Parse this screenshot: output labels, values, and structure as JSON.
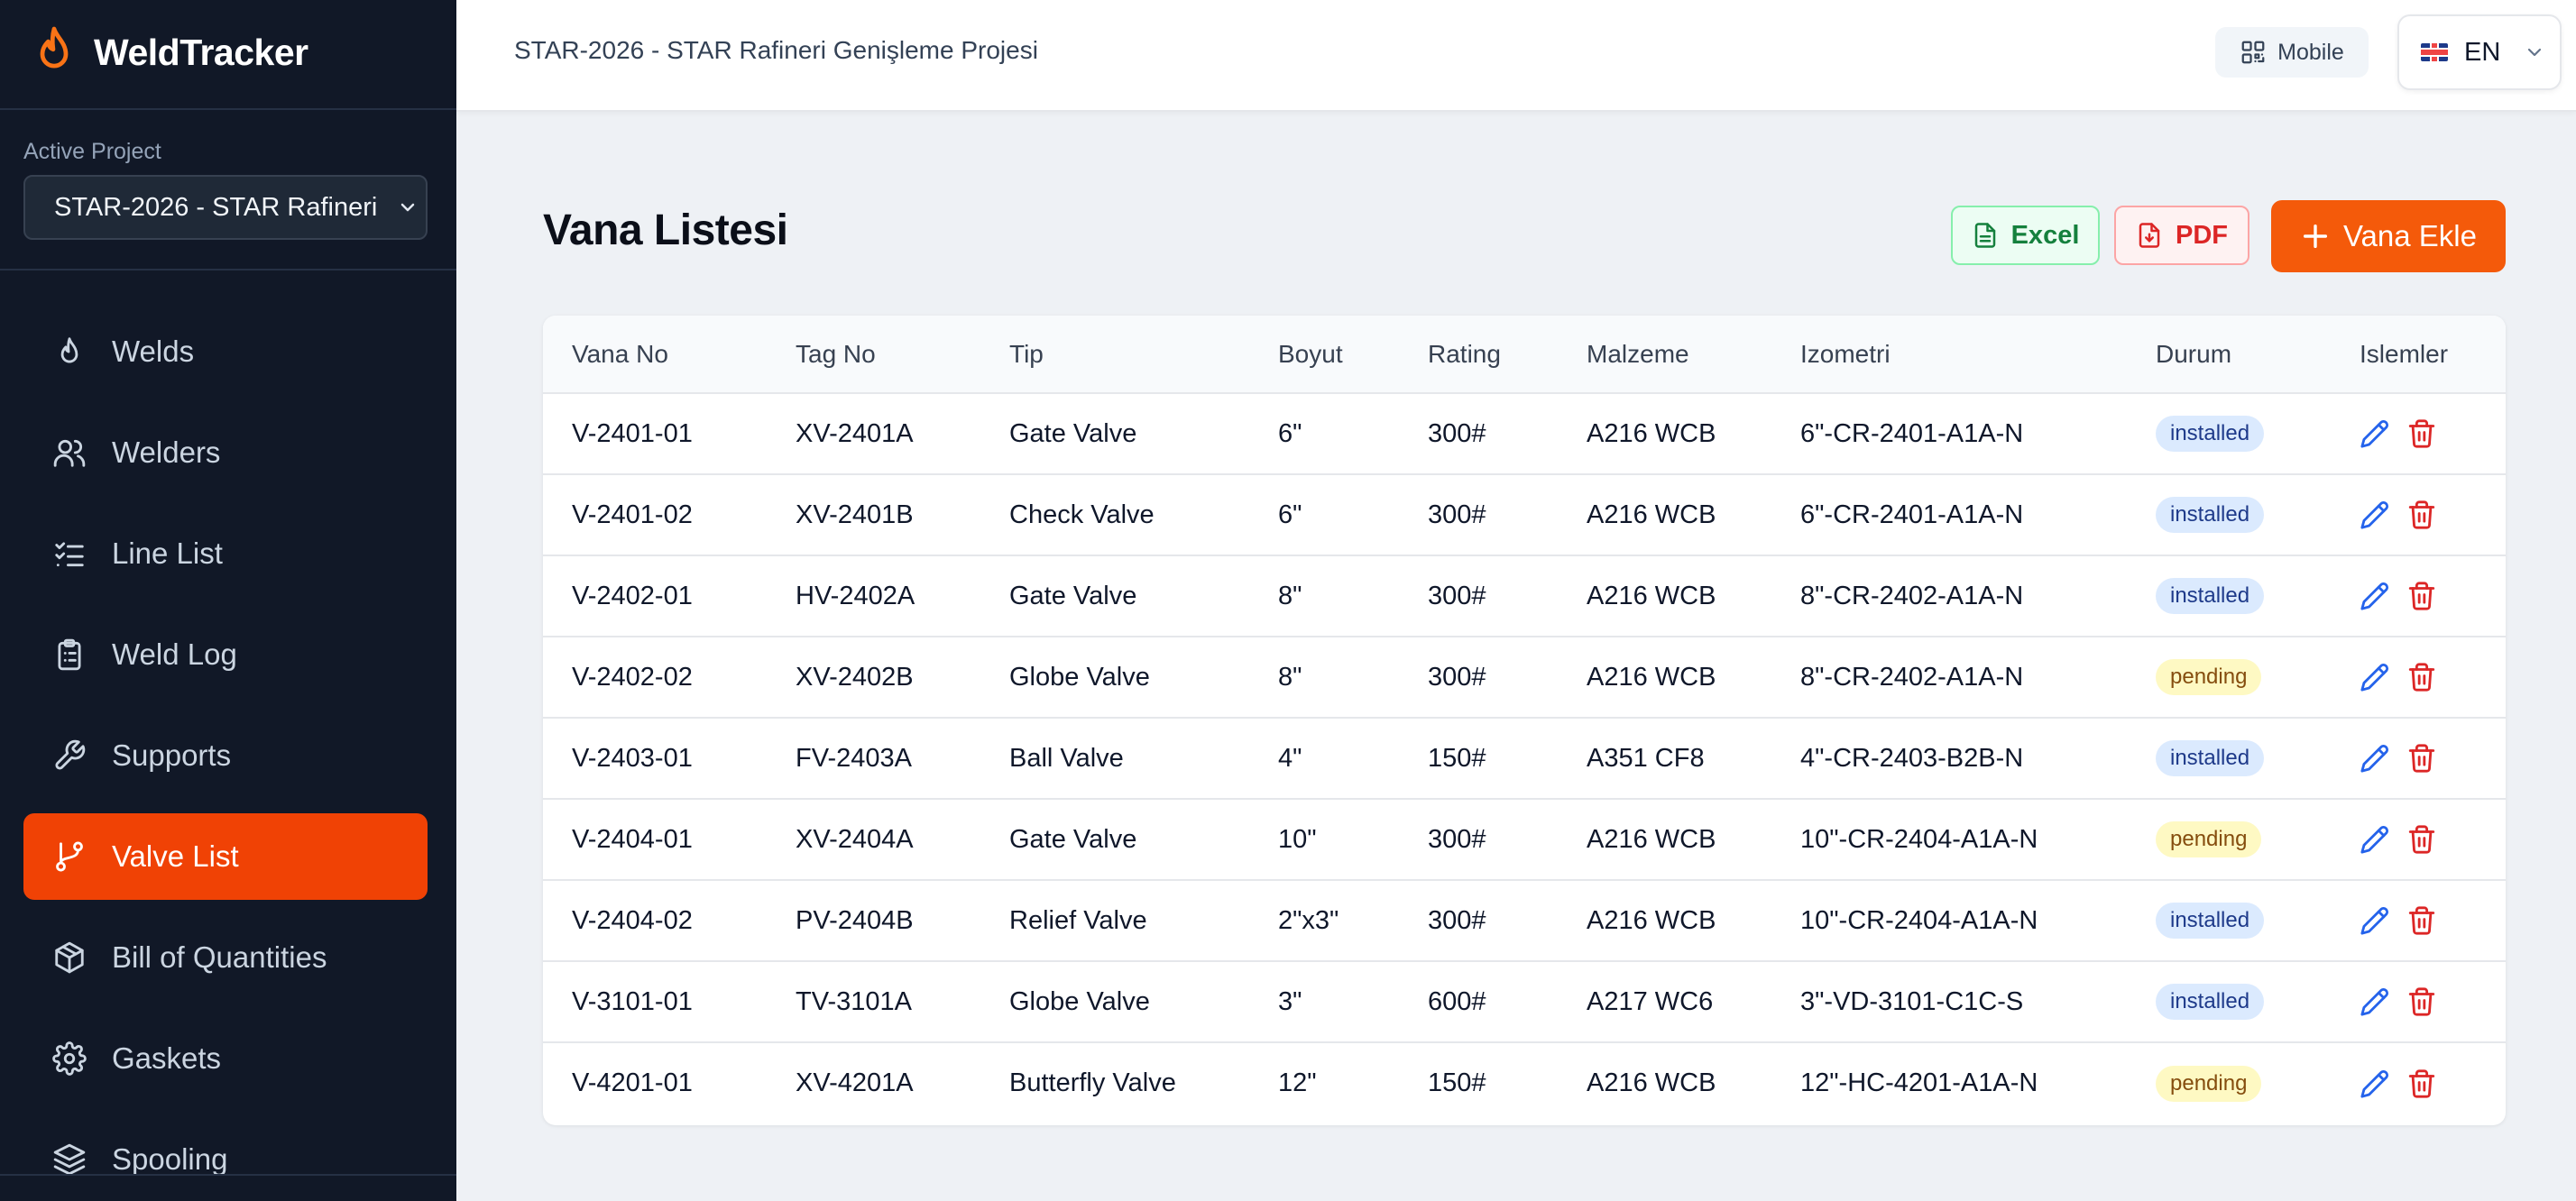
{
  "app": {
    "name": "WeldTracker"
  },
  "sidebar": {
    "project_label": "Active Project",
    "project_value": "STAR-2026 - STAR Rafineri",
    "items": [
      {
        "label": "Welds",
        "icon": "flame-icon"
      },
      {
        "label": "Welders",
        "icon": "users-icon"
      },
      {
        "label": "Line List",
        "icon": "list-check-icon"
      },
      {
        "label": "Weld Log",
        "icon": "clipboard-icon"
      },
      {
        "label": "Supports",
        "icon": "wrench-icon"
      },
      {
        "label": "Valve List",
        "icon": "git-branch-icon",
        "active": true
      },
      {
        "label": "Bill of Quantities",
        "icon": "package-icon"
      },
      {
        "label": "Gaskets",
        "icon": "gear-icon"
      },
      {
        "label": "Spooling",
        "icon": "layers-icon"
      }
    ]
  },
  "header": {
    "title": "STAR-2026 - STAR Rafineri Genişleme Projesi",
    "mobile_label": "Mobile",
    "language": "EN"
  },
  "page": {
    "title": "Vana Listesi",
    "excel_label": "Excel",
    "pdf_label": "PDF",
    "add_label": "Vana Ekle"
  },
  "table": {
    "columns": [
      "Vana No",
      "Tag No",
      "Tip",
      "Boyut",
      "Rating",
      "Malzeme",
      "Izometri",
      "Durum",
      "Islemler"
    ],
    "rows": [
      [
        "V-2401-01",
        "XV-2401A",
        "Gate Valve",
        "6\"",
        "300#",
        "A216 WCB",
        "6\"-CR-2401-A1A-N",
        "installed"
      ],
      [
        "V-2401-02",
        "XV-2401B",
        "Check Valve",
        "6\"",
        "300#",
        "A216 WCB",
        "6\"-CR-2401-A1A-N",
        "installed"
      ],
      [
        "V-2402-01",
        "HV-2402A",
        "Gate Valve",
        "8\"",
        "300#",
        "A216 WCB",
        "8\"-CR-2402-A1A-N",
        "installed"
      ],
      [
        "V-2402-02",
        "XV-2402B",
        "Globe Valve",
        "8\"",
        "300#",
        "A216 WCB",
        "8\"-CR-2402-A1A-N",
        "pending"
      ],
      [
        "V-2403-01",
        "FV-2403A",
        "Ball Valve",
        "4\"",
        "150#",
        "A351 CF8",
        "4\"-CR-2403-B2B-N",
        "installed"
      ],
      [
        "V-2404-01",
        "XV-2404A",
        "Gate Valve",
        "10\"",
        "300#",
        "A216 WCB",
        "10\"-CR-2404-A1A-N",
        "pending"
      ],
      [
        "V-2404-02",
        "PV-2404B",
        "Relief Valve",
        "2\"x3\"",
        "300#",
        "A216 WCB",
        "10\"-CR-2404-A1A-N",
        "installed"
      ],
      [
        "V-3101-01",
        "TV-3101A",
        "Globe Valve",
        "3\"",
        "600#",
        "A217 WC6",
        "3\"-VD-3101-C1C-S",
        "installed"
      ],
      [
        "V-4201-01",
        "XV-4201A",
        "Butterfly Valve",
        "12\"",
        "150#",
        "A216 WCB",
        "12\"-HC-4201-A1A-N",
        "pending"
      ]
    ]
  },
  "colors": {
    "accent": "#f45a0a",
    "sidebar_bg": "#111827",
    "active_nav": "#f04205",
    "edit_icon": "#2563eb",
    "delete_icon": "#dc2626"
  }
}
